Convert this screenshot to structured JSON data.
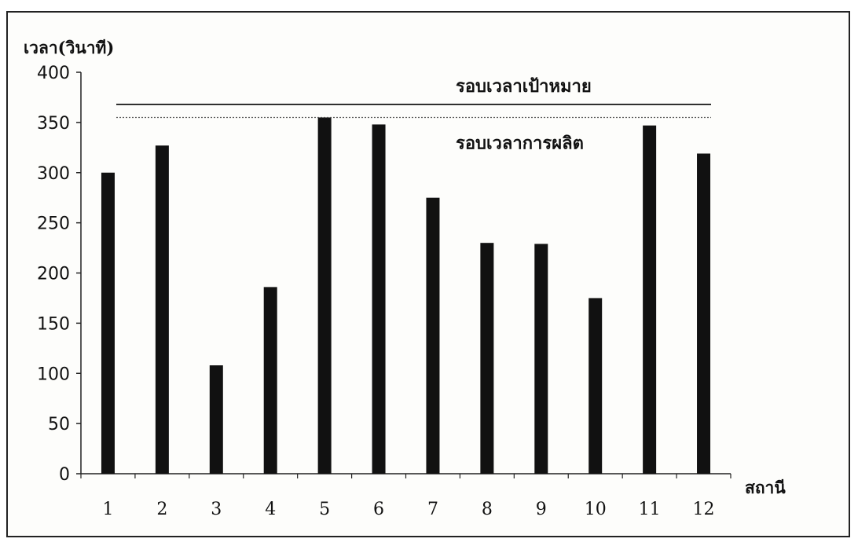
{
  "chart_data": {
    "type": "bar",
    "ylabel": "เวลา(วินาที)",
    "xlabel": "สถานี",
    "categories": [
      "1",
      "2",
      "3",
      "4",
      "5",
      "6",
      "7",
      "8",
      "9",
      "10",
      "11",
      "12"
    ],
    "values": [
      300,
      327,
      108,
      186,
      355,
      348,
      275,
      230,
      229,
      175,
      347,
      319
    ],
    "ylim": [
      0,
      400
    ],
    "yticks": [
      "0",
      "50",
      "100",
      "150",
      "200",
      "250",
      "300",
      "350",
      "400"
    ],
    "ytick_values": [
      0,
      50,
      100,
      150,
      200,
      250,
      300,
      350,
      400
    ],
    "reference_lines": [
      {
        "name": "รอบเวลาเป้าหมาย",
        "value": 368,
        "style": "solid"
      },
      {
        "name": "รอบเวลาการผลิต",
        "value": 355,
        "style": "dotted"
      }
    ],
    "bar_color": "#111111",
    "grid": false
  }
}
